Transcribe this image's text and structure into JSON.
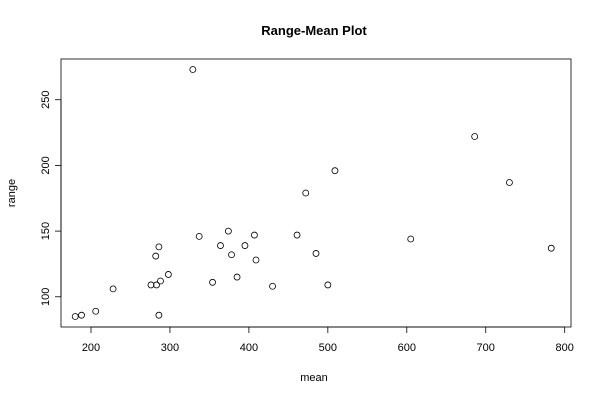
{
  "chart_data": {
    "type": "scatter",
    "title": "Range-Mean Plot",
    "xlabel": "mean",
    "ylabel": "range",
    "xlim": [
      162,
      808
    ],
    "ylim": [
      77,
      281
    ],
    "xticks": [
      200,
      300,
      400,
      500,
      600,
      700,
      800
    ],
    "yticks": [
      100,
      150,
      200,
      250
    ],
    "grid": false,
    "legend": "none",
    "marker": "open-circle",
    "colors": {
      "points": "#000000",
      "axes": "#000000",
      "background": "#ffffff"
    },
    "points": [
      {
        "x": 180,
        "y": 85
      },
      {
        "x": 188,
        "y": 86
      },
      {
        "x": 206,
        "y": 89
      },
      {
        "x": 228,
        "y": 106
      },
      {
        "x": 276,
        "y": 109
      },
      {
        "x": 282,
        "y": 131
      },
      {
        "x": 283,
        "y": 109
      },
      {
        "x": 286,
        "y": 138
      },
      {
        "x": 286,
        "y": 86
      },
      {
        "x": 288,
        "y": 112
      },
      {
        "x": 298,
        "y": 117
      },
      {
        "x": 329,
        "y": 273
      },
      {
        "x": 337,
        "y": 146
      },
      {
        "x": 354,
        "y": 111
      },
      {
        "x": 364,
        "y": 139
      },
      {
        "x": 374,
        "y": 150
      },
      {
        "x": 378,
        "y": 132
      },
      {
        "x": 385,
        "y": 115
      },
      {
        "x": 395,
        "y": 139
      },
      {
        "x": 407,
        "y": 147
      },
      {
        "x": 409,
        "y": 128
      },
      {
        "x": 430,
        "y": 108
      },
      {
        "x": 461,
        "y": 147
      },
      {
        "x": 472,
        "y": 179
      },
      {
        "x": 485,
        "y": 133
      },
      {
        "x": 500,
        "y": 109
      },
      {
        "x": 509,
        "y": 196
      },
      {
        "x": 605,
        "y": 144
      },
      {
        "x": 686,
        "y": 222
      },
      {
        "x": 730,
        "y": 187
      },
      {
        "x": 783,
        "y": 137
      }
    ]
  }
}
